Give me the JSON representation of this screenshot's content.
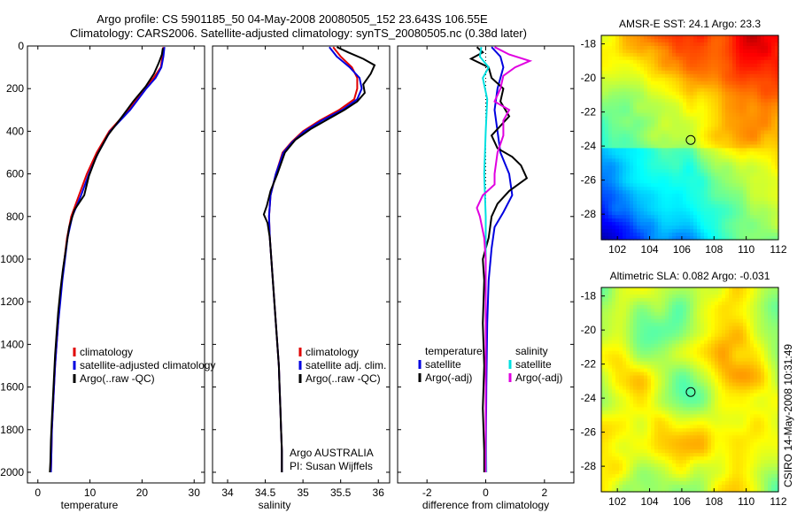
{
  "header": {
    "line1": "Argo profile: CS 5901185_50 04-May-2008 20080505_152 23.643S 106.55E",
    "line2": "Climatology: CARS2006. Satellite-adjusted climatology: synTS_20080505.nc (0.38d later)"
  },
  "side_text": "CSIRO 14-May-2008 10:31:49",
  "chart_data": [
    {
      "type": "line",
      "panel": "temperature",
      "xlabel": "temperature",
      "ylabel": "",
      "xlim": [
        -2,
        32
      ],
      "ylim": [
        0,
        2050
      ],
      "y_reversed": true,
      "xticks": [
        0,
        10,
        20,
        30
      ],
      "yticks": [
        0,
        200,
        400,
        600,
        800,
        1000,
        1200,
        1400,
        1600,
        1800,
        2000
      ],
      "legend": [
        "climatology",
        "satellite-adjusted climatology",
        "Argo(..raw -QC)"
      ],
      "series": [
        {
          "name": "climatology",
          "color": "#e00000",
          "points": [
            [
              24.1,
              5
            ],
            [
              23.9,
              50
            ],
            [
              23.6,
              100
            ],
            [
              22.2,
              150
            ],
            [
              20.4,
              200
            ],
            [
              17.4,
              300
            ],
            [
              13.7,
              400
            ],
            [
              11.3,
              500
            ],
            [
              9.4,
              600
            ],
            [
              7.9,
              700
            ],
            [
              6.4,
              800
            ],
            [
              5.6,
              900
            ],
            [
              5.1,
              1000
            ],
            [
              4.6,
              1100
            ],
            [
              4.2,
              1200
            ],
            [
              3.9,
              1300
            ],
            [
              3.6,
              1400
            ],
            [
              3.3,
              1500
            ],
            [
              3.1,
              1600
            ],
            [
              2.9,
              1700
            ],
            [
              2.7,
              1800
            ],
            [
              2.6,
              1900
            ],
            [
              2.5,
              2000
            ]
          ]
        },
        {
          "name": "satellite-adjusted climatology",
          "color": "#0000e0",
          "points": [
            [
              24.3,
              5
            ],
            [
              24.1,
              50
            ],
            [
              23.7,
              100
            ],
            [
              22.6,
              150
            ],
            [
              20.8,
              200
            ],
            [
              17.7,
              300
            ],
            [
              13.9,
              400
            ],
            [
              11.6,
              500
            ],
            [
              9.8,
              600
            ],
            [
              8.3,
              700
            ],
            [
              6.6,
              800
            ],
            [
              5.7,
              900
            ],
            [
              5.2,
              1000
            ],
            [
              4.7,
              1100
            ],
            [
              4.3,
              1200
            ],
            [
              3.9,
              1300
            ],
            [
              3.6,
              1400
            ],
            [
              3.3,
              1500
            ],
            [
              3.1,
              1600
            ],
            [
              2.9,
              1700
            ],
            [
              2.7,
              1800
            ],
            [
              2.6,
              1900
            ],
            [
              2.5,
              2000
            ]
          ]
        },
        {
          "name": "Argo(..raw -QC)",
          "color": "#000000",
          "points": [
            [
              24.0,
              10
            ],
            [
              23.8,
              40
            ],
            [
              23.2,
              80
            ],
            [
              22.3,
              130
            ],
            [
              20.7,
              190
            ],
            [
              18.3,
              260
            ],
            [
              16.2,
              330
            ],
            [
              13.4,
              420
            ],
            [
              11.2,
              520
            ],
            [
              9.8,
              610
            ],
            [
              8.9,
              700
            ],
            [
              7.0,
              770
            ],
            [
              6.0,
              850
            ],
            [
              5.4,
              950
            ],
            [
              4.8,
              1050
            ],
            [
              4.3,
              1150
            ],
            [
              3.9,
              1250
            ],
            [
              3.6,
              1350
            ],
            [
              3.3,
              1450
            ],
            [
              3.1,
              1550
            ],
            [
              2.9,
              1650
            ],
            [
              2.7,
              1750
            ],
            [
              2.5,
              1850
            ],
            [
              2.4,
              1950
            ],
            [
              2.3,
              2000
            ]
          ]
        }
      ]
    },
    {
      "type": "line",
      "panel": "salinity",
      "xlabel": "salinity",
      "ylabel": "",
      "xlim": [
        33.8,
        36.15
      ],
      "ylim": [
        0,
        2050
      ],
      "y_reversed": true,
      "xticks": [
        34,
        34.5,
        35,
        35.5,
        36
      ],
      "yticks": [
        0,
        200,
        400,
        600,
        800,
        1000,
        1200,
        1400,
        1600,
        1800,
        2000
      ],
      "legend": [
        "climatology",
        "satellite adj. clim.",
        "Argo(..raw -QC)"
      ],
      "annotations": [
        "Argo AUSTRALIA",
        "PI: Susan Wijffels"
      ],
      "series": [
        {
          "name": "climatology",
          "color": "#e00000",
          "points": [
            [
              35.4,
              5
            ],
            [
              35.5,
              50
            ],
            [
              35.65,
              100
            ],
            [
              35.72,
              150
            ],
            [
              35.72,
              200
            ],
            [
              35.68,
              250
            ],
            [
              35.48,
              300
            ],
            [
              35.22,
              350
            ],
            [
              35.0,
              400
            ],
            [
              34.85,
              450
            ],
            [
              34.73,
              500
            ],
            [
              34.64,
              600
            ],
            [
              34.57,
              700
            ],
            [
              34.55,
              800
            ],
            [
              34.56,
              900
            ],
            [
              34.58,
              1000
            ],
            [
              34.6,
              1100
            ],
            [
              34.62,
              1200
            ],
            [
              34.64,
              1300
            ],
            [
              34.66,
              1400
            ],
            [
              34.68,
              1500
            ],
            [
              34.69,
              1600
            ],
            [
              34.7,
              1700
            ],
            [
              34.71,
              1800
            ],
            [
              34.72,
              1900
            ],
            [
              34.72,
              2000
            ]
          ]
        },
        {
          "name": "satellite adj. clim.",
          "color": "#0000e0",
          "points": [
            [
              35.35,
              5
            ],
            [
              35.45,
              50
            ],
            [
              35.62,
              100
            ],
            [
              35.75,
              150
            ],
            [
              35.78,
              200
            ],
            [
              35.72,
              250
            ],
            [
              35.52,
              300
            ],
            [
              35.25,
              350
            ],
            [
              35.02,
              400
            ],
            [
              34.86,
              450
            ],
            [
              34.74,
              500
            ],
            [
              34.64,
              600
            ],
            [
              34.57,
              700
            ],
            [
              34.55,
              800
            ],
            [
              34.56,
              900
            ],
            [
              34.58,
              1000
            ],
            [
              34.6,
              1100
            ],
            [
              34.62,
              1200
            ],
            [
              34.64,
              1300
            ],
            [
              34.66,
              1400
            ],
            [
              34.68,
              1500
            ],
            [
              34.69,
              1600
            ],
            [
              34.7,
              1700
            ],
            [
              34.71,
              1800
            ],
            [
              34.72,
              1900
            ],
            [
              34.72,
              2000
            ]
          ]
        },
        {
          "name": "Argo(..raw -QC)",
          "color": "#000000",
          "points": [
            [
              35.45,
              5
            ],
            [
              35.6,
              30
            ],
            [
              35.8,
              60
            ],
            [
              35.95,
              90
            ],
            [
              35.9,
              130
            ],
            [
              35.8,
              180
            ],
            [
              35.82,
              220
            ],
            [
              35.72,
              260
            ],
            [
              35.55,
              300
            ],
            [
              35.35,
              340
            ],
            [
              35.1,
              390
            ],
            [
              34.9,
              440
            ],
            [
              34.76,
              500
            ],
            [
              34.66,
              600
            ],
            [
              34.57,
              680
            ],
            [
              34.52,
              750
            ],
            [
              34.48,
              790
            ],
            [
              34.53,
              830
            ],
            [
              34.56,
              900
            ],
            [
              34.58,
              1000
            ],
            [
              34.6,
              1100
            ],
            [
              34.62,
              1200
            ],
            [
              34.64,
              1300
            ],
            [
              34.66,
              1400
            ],
            [
              34.68,
              1500
            ],
            [
              34.69,
              1600
            ],
            [
              34.7,
              1700
            ],
            [
              34.71,
              1800
            ],
            [
              34.72,
              1900
            ],
            [
              34.72,
              2000
            ]
          ]
        }
      ]
    },
    {
      "type": "line",
      "panel": "difference",
      "xlabel": "difference from climatology",
      "ylabel": "",
      "xlim": [
        -3,
        3
      ],
      "ylim": [
        0,
        2050
      ],
      "y_reversed": true,
      "xticks": [
        -2,
        0,
        2
      ],
      "yticks": [
        0,
        200,
        400,
        600,
        800,
        1000,
        1200,
        1400,
        1600,
        1800,
        2000
      ],
      "legend_headers": [
        "temperature",
        "salinity"
      ],
      "legend": [
        "satellite",
        "Argo(-adj)",
        "satellite",
        "Argo(-adj)"
      ],
      "series": [
        {
          "name": "satellite",
          "group": "temperature",
          "color": "#0000e0",
          "points": [
            [
              0.2,
              5
            ],
            [
              0.5,
              50
            ],
            [
              0.6,
              100
            ],
            [
              0.5,
              150
            ],
            [
              0.4,
              200
            ],
            [
              0.3,
              300
            ],
            [
              0.4,
              400
            ],
            [
              0.5,
              500
            ],
            [
              0.8,
              600
            ],
            [
              0.9,
              700
            ],
            [
              0.6,
              780
            ],
            [
              0.3,
              850
            ],
            [
              0.2,
              950
            ],
            [
              0.1,
              1100
            ],
            [
              0.05,
              1300
            ],
            [
              0.02,
              1600
            ],
            [
              0.0,
              2000
            ]
          ]
        },
        {
          "name": "Argo(-adj)",
          "group": "temperature",
          "color": "#000000",
          "points": [
            [
              -0.3,
              5
            ],
            [
              -0.1,
              30
            ],
            [
              -0.5,
              60
            ],
            [
              0.1,
              100
            ],
            [
              0.2,
              150
            ],
            [
              0.6,
              200
            ],
            [
              0.5,
              260
            ],
            [
              0.8,
              330
            ],
            [
              0.2,
              420
            ],
            [
              0.4,
              480
            ],
            [
              0.9,
              520
            ],
            [
              1.2,
              560
            ],
            [
              1.4,
              620
            ],
            [
              0.8,
              680
            ],
            [
              0.4,
              740
            ],
            [
              0.2,
              800
            ],
            [
              0.1,
              900
            ],
            [
              -0.1,
              1000
            ],
            [
              -0.05,
              1100
            ],
            [
              -0.1,
              1300
            ],
            [
              -0.05,
              1500
            ],
            [
              -0.1,
              1700
            ],
            [
              -0.05,
              1900
            ],
            [
              -0.05,
              2000
            ]
          ]
        },
        {
          "name": "satellite",
          "group": "salinity",
          "color": "#00e0e0",
          "points": [
            [
              -0.15,
              5
            ],
            [
              -0.2,
              50
            ],
            [
              0.1,
              100
            ],
            [
              -0.1,
              150
            ],
            [
              0.05,
              250
            ],
            [
              0.0,
              400
            ],
            [
              -0.05,
              600
            ],
            [
              0.0,
              800
            ],
            [
              0.0,
              1100
            ],
            [
              0.0,
              1400
            ],
            [
              0.0,
              1700
            ],
            [
              0.02,
              2000
            ]
          ]
        },
        {
          "name": "Argo(-adj)",
          "group": "salinity",
          "color": "#e000e0",
          "points": [
            [
              0.3,
              5
            ],
            [
              0.8,
              40
            ],
            [
              1.5,
              70
            ],
            [
              1.0,
              100
            ],
            [
              0.6,
              140
            ],
            [
              0.5,
              200
            ],
            [
              0.3,
              260
            ],
            [
              0.8,
              300
            ],
            [
              0.6,
              350
            ],
            [
              0.6,
              420
            ],
            [
              0.4,
              500
            ],
            [
              0.3,
              600
            ],
            [
              0.3,
              650
            ],
            [
              -0.1,
              700
            ],
            [
              -0.3,
              760
            ],
            [
              -0.2,
              800
            ],
            [
              -0.05,
              900
            ],
            [
              0.0,
              1000
            ],
            [
              0.0,
              1300
            ],
            [
              0.0,
              1700
            ],
            [
              0.0,
              2000
            ]
          ]
        }
      ]
    },
    {
      "type": "heatmap",
      "panel": "sst-map",
      "title": "AMSR-E SST: 24.1  Argo: 23.3",
      "xlim": [
        101,
        112
      ],
      "ylim": [
        -29.5,
        -17.5
      ],
      "xticks": [
        102,
        104,
        106,
        108,
        110,
        112
      ],
      "yticks": [
        -18,
        -20,
        -22,
        -24,
        -26,
        -28
      ],
      "marker": [
        106.55,
        -23.643
      ]
    },
    {
      "type": "heatmap",
      "panel": "sla-map",
      "title": "Altimetric SLA: 0.082  Argo: -0.031",
      "xlim": [
        101,
        112
      ],
      "ylim": [
        -29.5,
        -17.5
      ],
      "xticks": [
        102,
        104,
        106,
        108,
        110,
        112
      ],
      "yticks": [
        -18,
        -20,
        -22,
        -24,
        -26,
        -28
      ],
      "marker": [
        106.55,
        -23.643
      ]
    }
  ]
}
